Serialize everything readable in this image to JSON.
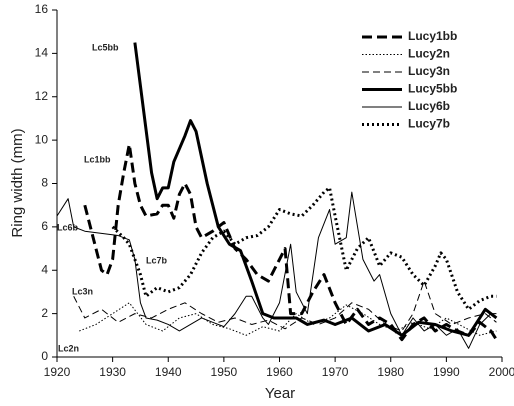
{
  "chart_data": {
    "type": "line",
    "xlabel": "Year",
    "ylabel": "Ring width (mm)",
    "xlim": [
      1920,
      2000
    ],
    "xticks": [
      1920,
      1930,
      1940,
      1950,
      1960,
      1970,
      1980,
      1990,
      2000
    ],
    "ylim": [
      0,
      16
    ],
    "yticks": [
      0,
      2,
      4,
      6,
      8,
      10,
      12,
      14,
      16
    ],
    "legend": "upper right",
    "annotations": [
      "Lc5bb",
      "Lc1bb",
      "Lc6b",
      "Lc7b",
      "Lc3n",
      "Lc2n"
    ],
    "series": [
      {
        "name": "Lucy1bb",
        "color": "#000000",
        "line_style": "dashed",
        "weight": "bold",
        "x": [
          1925,
          1927,
          1928,
          1929,
          1930,
          1931,
          1932,
          1933,
          1934,
          1935,
          1936,
          1938,
          1939,
          1940,
          1941,
          1942,
          1943,
          1944,
          1945,
          1946,
          1948,
          1950,
          1952,
          1954,
          1956,
          1958,
          1960,
          1961,
          1962,
          1964,
          1966,
          1968,
          1970,
          1972,
          1974,
          1976,
          1978,
          1980,
          1982,
          1984,
          1986,
          1988,
          1990,
          1992,
          1994,
          1996,
          1998,
          1999
        ],
        "values": [
          7,
          5,
          4,
          3.8,
          4.5,
          7,
          8.5,
          9.8,
          8,
          7,
          6.5,
          6.6,
          7,
          7,
          6.4,
          7.5,
          8,
          7.5,
          6,
          5.5,
          5.8,
          6.2,
          5,
          4.5,
          3.8,
          3.5,
          4.5,
          5,
          2,
          2,
          3,
          3.8,
          2.5,
          1.5,
          2.2,
          1.5,
          1.8,
          1.5,
          0.8,
          1.5,
          1.8,
          1.2,
          1.5,
          1.2,
          1,
          1.6,
          1.2,
          0.8
        ]
      },
      {
        "name": "Lucy2n",
        "color": "#000000",
        "line_style": "dotted",
        "weight": "normal",
        "x": [
          1924,
          1927,
          1930,
          1933,
          1936,
          1939,
          1942,
          1945,
          1948,
          1951,
          1954,
          1957,
          1960,
          1963,
          1966,
          1969,
          1972,
          1975,
          1978,
          1981,
          1984,
          1987,
          1990,
          1993,
          1996,
          1999
        ],
        "values": [
          1.2,
          1.5,
          2,
          2.5,
          1.5,
          1.2,
          1.8,
          2,
          1.5,
          1.3,
          1,
          1.4,
          1.2,
          2,
          1.5,
          1.8,
          2.4,
          2,
          1.5,
          1.2,
          1.6,
          1.3,
          1.8,
          1.4,
          1,
          1.2
        ]
      },
      {
        "name": "Lucy3n",
        "color": "#000000",
        "line_style": "dashed",
        "weight": "normal",
        "x": [
          1923,
          1925,
          1928,
          1931,
          1934,
          1937,
          1940,
          1943,
          1946,
          1949,
          1952,
          1955,
          1958,
          1961,
          1964,
          1967,
          1970,
          1973,
          1976,
          1979,
          1982,
          1984,
          1986,
          1988,
          1991,
          1994,
          1997,
          1999
        ],
        "values": [
          2.8,
          1.8,
          2.2,
          1.6,
          2,
          1.8,
          2.2,
          2.5,
          2,
          1.6,
          1.8,
          1.5,
          1.7,
          1.3,
          1.8,
          1.5,
          1.8,
          2.5,
          2.2,
          1.5,
          1.2,
          2,
          3.5,
          2,
          1.5,
          1.8,
          2,
          1.6
        ]
      },
      {
        "name": "Lucy5bb",
        "color": "#000000",
        "line_style": "solid",
        "weight": "bold",
        "x": [
          1934,
          1935,
          1936,
          1937,
          1938,
          1939,
          1940,
          1941,
          1943,
          1944,
          1945,
          1947,
          1949,
          1951,
          1953,
          1955,
          1957,
          1959,
          1961,
          1963,
          1965,
          1968,
          1970,
          1973,
          1976,
          1979,
          1982,
          1985,
          1988,
          1991,
          1994,
          1997,
          1999
        ],
        "values": [
          14.5,
          12.5,
          10.5,
          8.5,
          7.3,
          7.8,
          7.8,
          9,
          10.2,
          10.9,
          10.4,
          8,
          6,
          5.2,
          4.9,
          3.5,
          2,
          1.8,
          1.8,
          1.8,
          1.5,
          1.7,
          1.5,
          1.8,
          1.2,
          1.5,
          1,
          1.6,
          1.5,
          1.2,
          1,
          2.2,
          1.8
        ]
      },
      {
        "name": "Lucy6b",
        "color": "#000000",
        "line_style": "solid",
        "weight": "normal",
        "x": [
          1920,
          1922,
          1923,
          1925,
          1928,
          1931,
          1933,
          1934,
          1935,
          1936,
          1938,
          1940,
          1942,
          1944,
          1946,
          1948,
          1950,
          1952,
          1954,
          1955,
          1957,
          1958,
          1960,
          1962,
          1963,
          1965,
          1967,
          1969,
          1970,
          1972,
          1973,
          1975,
          1977,
          1978,
          1980,
          1982,
          1984,
          1986,
          1988,
          1990,
          1992,
          1994,
          1996,
          1998,
          1999
        ],
        "values": [
          6.5,
          7.3,
          6,
          5.8,
          5.7,
          5.6,
          5.4,
          4.5,
          2.5,
          1.8,
          1.7,
          1.5,
          1.2,
          1.5,
          1.8,
          1.6,
          1.4,
          2,
          2.8,
          2.8,
          1.8,
          1.5,
          2.5,
          5.2,
          3,
          2,
          5.5,
          6.8,
          5.2,
          5.5,
          7.6,
          4.5,
          3.5,
          3.8,
          2,
          1,
          1.8,
          1.2,
          1.5,
          1,
          1.3,
          0.4,
          1.5,
          2,
          2
        ]
      },
      {
        "name": "Lucy7b",
        "color": "#000000",
        "line_style": "dotted",
        "weight": "bold",
        "x": [
          1930,
          1932,
          1933,
          1935,
          1936,
          1938,
          1940,
          1942,
          1944,
          1946,
          1948,
          1950,
          1952,
          1954,
          1956,
          1958,
          1960,
          1962,
          1964,
          1966,
          1968,
          1969,
          1970,
          1972,
          1974,
          1976,
          1978,
          1980,
          1982,
          1984,
          1986,
          1988,
          1989,
          1990,
          1992,
          1994,
          1996,
          1998,
          1999
        ],
        "values": [
          6,
          5.5,
          5.2,
          3.8,
          2.8,
          3.2,
          3,
          3.2,
          3.8,
          4.8,
          5.5,
          5.8,
          5.2,
          5.5,
          5.6,
          6,
          6.8,
          6.6,
          6.5,
          7,
          7.6,
          7.8,
          6.5,
          4,
          5,
          5.5,
          4.2,
          4.8,
          4.6,
          3.8,
          3.3,
          4.2,
          4.8,
          4.5,
          3,
          2.2,
          2.6,
          2.8,
          2.8
        ]
      }
    ]
  }
}
